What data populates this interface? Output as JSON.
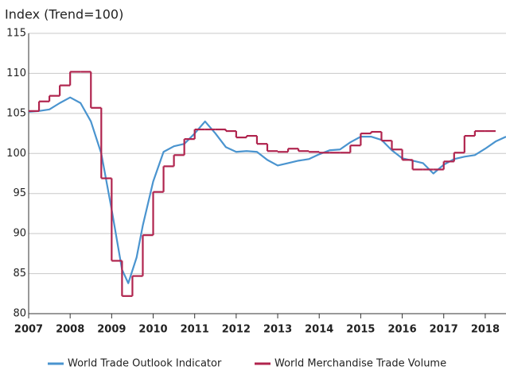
{
  "chart_data": {
    "type": "line",
    "title": "Index (Trend=100)",
    "xlim": [
      2007,
      2018.5
    ],
    "xticks": [
      2007,
      2008,
      2009,
      2010,
      2011,
      2012,
      2013,
      2014,
      2015,
      2016,
      2017,
      2018
    ],
    "ylim": [
      80,
      115
    ],
    "yticks": [
      80,
      85,
      90,
      95,
      100,
      105,
      110,
      115
    ],
    "grid": true,
    "legend": "bottom",
    "series": [
      {
        "name": "World Trade Outlook Indicator",
        "color": "#4a94cf",
        "step": false,
        "x": [
          2007.0,
          2007.25,
          2007.5,
          2007.75,
          2008.0,
          2008.25,
          2008.5,
          2008.75,
          2009.0,
          2009.25,
          2009.4,
          2009.6,
          2009.75,
          2010.0,
          2010.25,
          2010.5,
          2010.75,
          2011.0,
          2011.25,
          2011.5,
          2011.75,
          2012.0,
          2012.25,
          2012.5,
          2012.75,
          2013.0,
          2013.25,
          2013.5,
          2013.75,
          2014.0,
          2014.25,
          2014.5,
          2014.75,
          2015.0,
          2015.25,
          2015.5,
          2015.75,
          2016.0,
          2016.25,
          2016.5,
          2016.75,
          2017.0,
          2017.25,
          2017.5,
          2017.75,
          2018.0,
          2018.25,
          2018.5
        ],
        "values": [
          105.2,
          105.3,
          105.5,
          106.3,
          107.0,
          106.3,
          104.0,
          100.0,
          93.0,
          85.5,
          83.8,
          87.0,
          91.0,
          96.5,
          100.2,
          100.9,
          101.2,
          102.5,
          104.0,
          102.5,
          100.8,
          100.2,
          100.3,
          100.2,
          99.2,
          98.5,
          98.8,
          99.1,
          99.3,
          99.9,
          100.4,
          100.5,
          101.4,
          102.1,
          102.1,
          101.7,
          100.4,
          99.4,
          99.1,
          98.8,
          97.5,
          98.6,
          99.3,
          99.6,
          99.8,
          100.6,
          101.5,
          102.1
        ]
      },
      {
        "name": "World Merchandise Trade Volume",
        "color": "#b0244e",
        "step": true,
        "x": [
          2007.0,
          2007.25,
          2007.5,
          2007.75,
          2008.0,
          2008.25,
          2008.5,
          2008.75,
          2009.0,
          2009.25,
          2009.5,
          2009.75,
          2010.0,
          2010.25,
          2010.5,
          2010.75,
          2011.0,
          2011.25,
          2011.5,
          2011.75,
          2012.0,
          2012.25,
          2012.5,
          2012.75,
          2013.0,
          2013.25,
          2013.5,
          2013.75,
          2014.0,
          2014.25,
          2014.5,
          2014.75,
          2015.0,
          2015.25,
          2015.5,
          2015.75,
          2016.0,
          2016.25,
          2016.5,
          2016.75,
          2017.0,
          2017.25,
          2017.5,
          2017.75,
          2018.0
        ],
        "values": [
          105.3,
          106.5,
          107.2,
          108.5,
          110.2,
          110.2,
          105.7,
          96.9,
          86.6,
          82.2,
          84.7,
          89.8,
          95.2,
          98.4,
          99.8,
          101.8,
          103.0,
          103.0,
          103.0,
          102.8,
          102.0,
          102.2,
          101.2,
          100.3,
          100.2,
          100.6,
          100.3,
          100.2,
          100.1,
          100.1,
          100.1,
          101.0,
          102.5,
          102.7,
          101.6,
          100.5,
          99.2,
          98.0,
          98.0,
          98.0,
          99.0,
          100.1,
          102.2,
          102.8,
          102.8
        ]
      }
    ]
  }
}
